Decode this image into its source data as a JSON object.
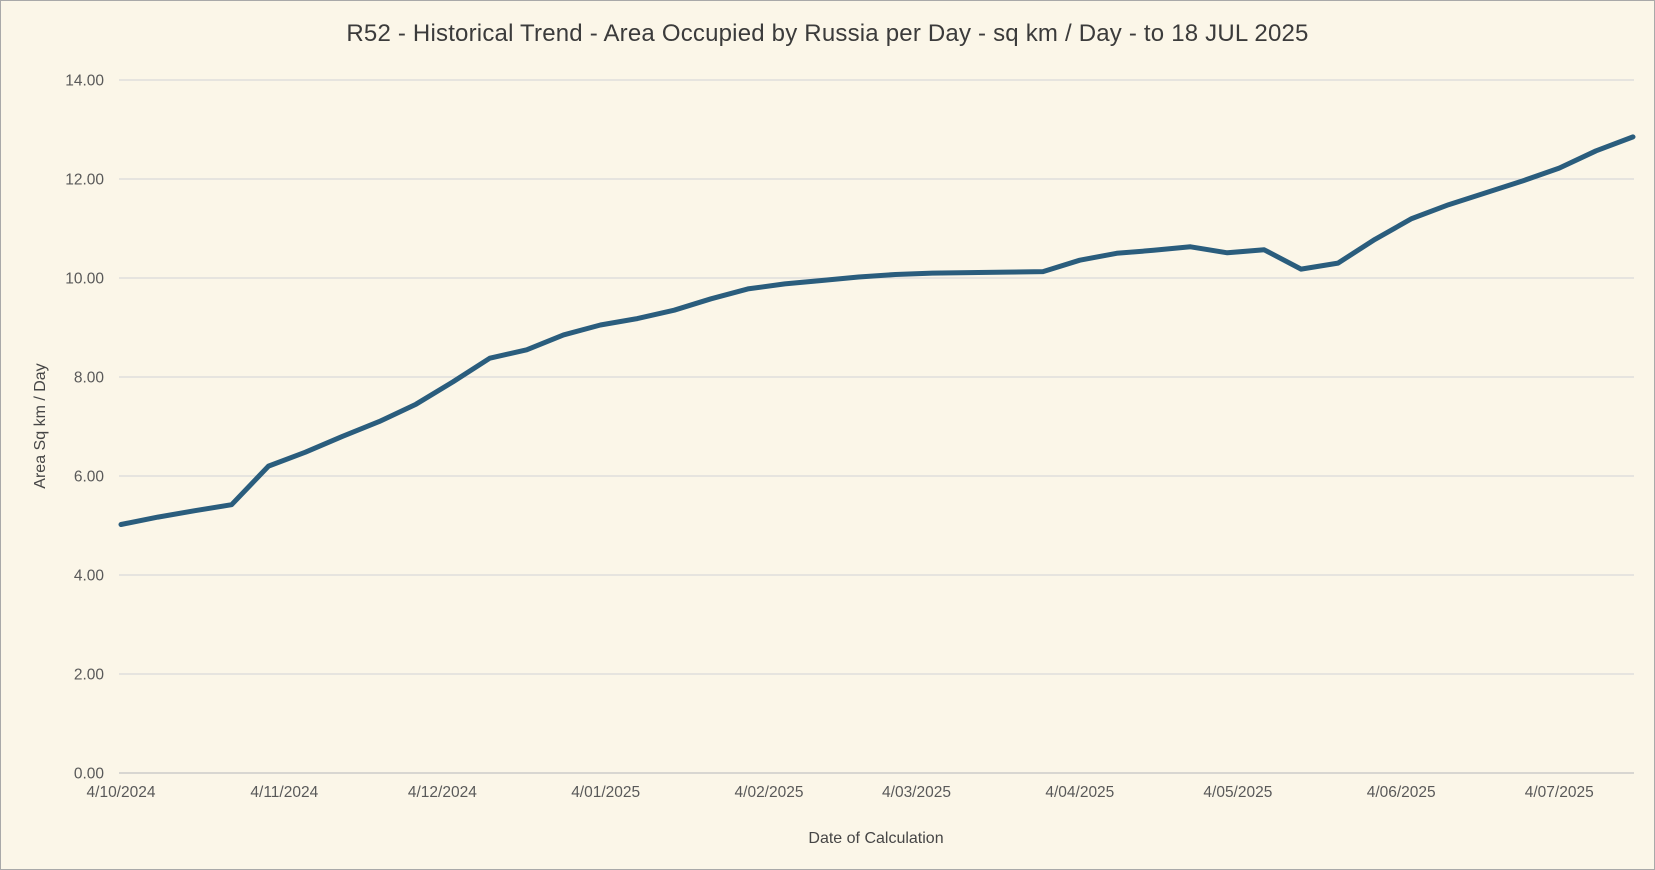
{
  "page": {
    "background": "#fbf6e8",
    "border_color": "#a9a9a9",
    "text_color": "#3b3b3b"
  },
  "chart_data": {
    "type": "line",
    "title": "R52 - Historical Trend - Area Occupied by Russia per Day - sq km / Day - to 18 JUL 2025",
    "xlabel": "Date of Calculation",
    "ylabel": "Area Sq km / Day",
    "ylim": [
      0,
      14
    ],
    "ytick_labels": [
      "0.00",
      "2.00",
      "4.00",
      "6.00",
      "8.00",
      "10.00",
      "12.00",
      "14.00"
    ],
    "ytick_values": [
      0,
      2,
      4,
      6,
      8,
      10,
      12,
      14
    ],
    "xtick_labels": [
      "4/10/2024",
      "4/11/2024",
      "4/12/2024",
      "4/01/2025",
      "4/02/2025",
      "4/03/2025",
      "4/04/2025",
      "4/05/2025",
      "4/06/2025",
      "4/07/2025"
    ],
    "xtick_day_offsets": [
      0,
      31,
      61,
      92,
      123,
      151,
      182,
      212,
      243,
      273
    ],
    "x_total_days": 287,
    "grid": true,
    "legend": "none",
    "style": {
      "line_color": "#2a5d7d",
      "line_width": 5,
      "grid_color": "#d9d9d9",
      "axis_line_color": "#c3c3c3",
      "tick_label_color": "#595959"
    },
    "series": [
      {
        "name": "Area Occupied by Russia per Day (sq km / Day)",
        "color": "#2a5d7d",
        "x_dates": [
          "4/10/2024",
          "11/10/2024",
          "18/10/2024",
          "25/10/2024",
          "1/11/2024",
          "8/11/2024",
          "15/11/2024",
          "22/11/2024",
          "29/11/2024",
          "6/12/2024",
          "13/12/2024",
          "20/12/2024",
          "27/12/2024",
          "3/01/2025",
          "10/01/2025",
          "17/01/2025",
          "24/01/2025",
          "31/01/2025",
          "7/02/2025",
          "14/02/2025",
          "21/02/2025",
          "28/02/2025",
          "7/03/2025",
          "14/03/2025",
          "21/03/2025",
          "28/03/2025",
          "4/04/2025",
          "11/04/2025",
          "18/04/2025",
          "25/04/2025",
          "2/05/2025",
          "9/05/2025",
          "16/05/2025",
          "23/05/2025",
          "30/05/2025",
          "6/06/2025",
          "13/06/2025",
          "20/06/2025",
          "27/06/2025",
          "4/07/2025",
          "11/07/2025",
          "18/07/2025"
        ],
        "x_day_offsets": [
          0,
          7,
          14,
          21,
          28,
          35,
          42,
          49,
          56,
          63,
          70,
          77,
          84,
          91,
          98,
          105,
          112,
          119,
          126,
          133,
          140,
          147,
          154,
          161,
          168,
          175,
          182,
          189,
          196,
          203,
          210,
          217,
          224,
          231,
          238,
          245,
          252,
          259,
          266,
          273,
          280,
          287
        ],
        "values": [
          5.02,
          5.17,
          5.3,
          5.42,
          6.2,
          6.48,
          6.8,
          7.1,
          7.45,
          7.9,
          8.38,
          8.55,
          8.85,
          9.05,
          9.18,
          9.35,
          9.58,
          9.78,
          9.88,
          9.95,
          10.02,
          10.07,
          10.1,
          10.11,
          10.12,
          10.13,
          10.36,
          10.5,
          10.56,
          10.63,
          10.51,
          10.57,
          10.18,
          10.3,
          10.78,
          11.2,
          11.48,
          11.72,
          11.96,
          12.22,
          12.57,
          12.85
        ]
      }
    ]
  }
}
